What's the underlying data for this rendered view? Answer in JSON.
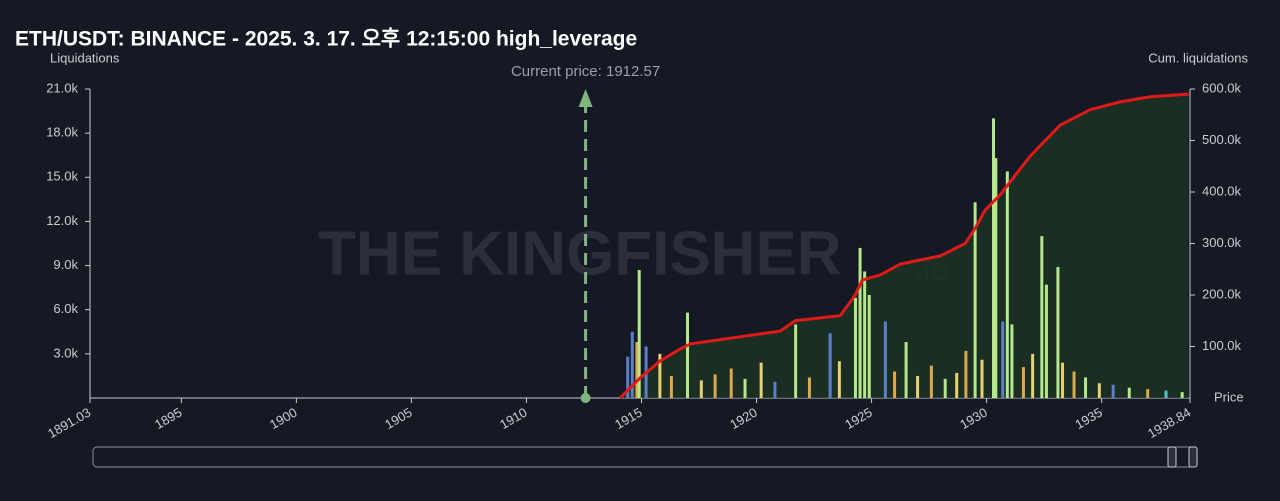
{
  "chart_data": {
    "type": "bar",
    "title": "ETH/USDT: BINANCE - 2025. 3. 17. 오후 12:15:00 high_leverage",
    "y_label": "Liquidations",
    "y2_label": "Cum. liquidations",
    "x_label": "Price",
    "watermark": "THE KINGFISHER",
    "watermark_suffix": ".io",
    "current_price": 1912.57,
    "current_price_label": "Current price: 1912.57",
    "xlim": [
      1891.03,
      1938.84
    ],
    "xticks": [
      1891.03,
      1895,
      1900,
      1905,
      1910,
      1915,
      1920,
      1925,
      1930,
      1935,
      1938.84
    ],
    "ylim": [
      0,
      21000
    ],
    "yticks": [
      {
        "value": 3000,
        "label": "3.0k"
      },
      {
        "value": 6000,
        "label": "6.0k"
      },
      {
        "value": 9000,
        "label": "9.0k"
      },
      {
        "value": 12000,
        "label": "12.0k"
      },
      {
        "value": 15000,
        "label": "15.0k"
      },
      {
        "value": 18000,
        "label": "18.0k"
      },
      {
        "value": 21000,
        "label": "21.0k"
      }
    ],
    "y2lim": [
      0,
      600000
    ],
    "y2ticks": [
      {
        "value": 100000,
        "label": "100.0k"
      },
      {
        "value": 200000,
        "label": "200.0k"
      },
      {
        "value": 300000,
        "label": "300.0k"
      },
      {
        "value": 400000,
        "label": "400.0k"
      },
      {
        "value": 500000,
        "label": "500.0k"
      },
      {
        "value": 600000,
        "label": "600.0k"
      }
    ],
    "bars": {
      "x": [
        1914.4,
        1914.6,
        1914.8,
        1914.9,
        1915.2,
        1915.8,
        1916.3,
        1917.0,
        1917.6,
        1918.2,
        1918.9,
        1919.5,
        1920.2,
        1920.8,
        1921.7,
        1922.3,
        1923.2,
        1923.6,
        1924.3,
        1924.5,
        1924.7,
        1924.9,
        1925.6,
        1926.0,
        1926.5,
        1927.0,
        1927.6,
        1928.2,
        1928.7,
        1929.1,
        1929.5,
        1929.8,
        1930.3,
        1930.4,
        1930.7,
        1930.9,
        1931.1,
        1931.6,
        1932.0,
        1932.4,
        1932.6,
        1933.1,
        1933.3,
        1933.8,
        1934.3,
        1934.9,
        1935.5,
        1936.2,
        1937.0,
        1937.8,
        1938.5
      ],
      "values": [
        2800,
        4500,
        3800,
        8700,
        3500,
        3000,
        1500,
        5800,
        1200,
        1600,
        2000,
        1300,
        2400,
        1100,
        5000,
        1400,
        4400,
        2500,
        6800,
        10200,
        8600,
        7000,
        5200,
        1800,
        3800,
        1500,
        2200,
        1300,
        1700,
        3200,
        13300,
        2600,
        19000,
        16300,
        5200,
        15400,
        5000,
        2100,
        3000,
        11000,
        7700,
        8900,
        2400,
        1800,
        1400,
        1000,
        900,
        700,
        600,
        500,
        400
      ],
      "colors": [
        "#5b7fc7",
        "#5b7fc7",
        "#e0a84a",
        "#b5e88a",
        "#5b7fc7",
        "#e8d070",
        "#e0a84a",
        "#b5e88a",
        "#e8d070",
        "#e0a84a",
        "#e0a84a",
        "#b5e88a",
        "#e8d070",
        "#5b7fc7",
        "#b5e88a",
        "#e0a84a",
        "#5b7fc7",
        "#e8d070",
        "#b5e88a",
        "#b5e88a",
        "#b5e88a",
        "#b5e88a",
        "#5b7fc7",
        "#e0a84a",
        "#b5e88a",
        "#e8d070",
        "#e0a84a",
        "#b5e88a",
        "#e8d070",
        "#e0a84a",
        "#b5e88a",
        "#e8d070",
        "#b5e88a",
        "#b5e88a",
        "#5b7fc7",
        "#b5e88a",
        "#b5e88a",
        "#e0a84a",
        "#e8d070",
        "#b5e88a",
        "#b5e88a",
        "#b5e88a",
        "#e8d070",
        "#e0a84a",
        "#b5e88a",
        "#e8d070",
        "#5b7fc7",
        "#b5e88a",
        "#e0a84a",
        "#4fc3c8",
        "#b5e88a"
      ]
    },
    "cumulative": {
      "axis": "y2",
      "color": "#e01919",
      "x": [
        1914.07,
        1914.94,
        1915.81,
        1916.68,
        1917.12,
        1921.03,
        1921.68,
        1923.64,
        1924.29,
        1924.6,
        1925.38,
        1926.25,
        1927.99,
        1929.07,
        1929.51,
        1929.94,
        1930.6,
        1931.03,
        1931.9,
        1932.55,
        1933.2,
        1934.51,
        1935.81,
        1937.12,
        1938.77
      ],
      "values": [
        0,
        39000,
        72000,
        95000,
        105000,
        130000,
        150000,
        160000,
        200000,
        229000,
        239000,
        260000,
        276000,
        300000,
        330000,
        365000,
        395000,
        420000,
        470000,
        500000,
        530000,
        560000,
        575000,
        585000,
        590000
      ]
    }
  }
}
